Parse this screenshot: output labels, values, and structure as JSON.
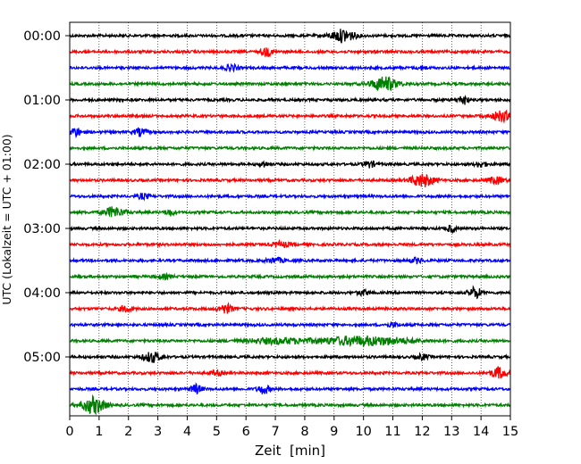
{
  "chart_data": {
    "type": "line",
    "title": "",
    "xlabel": "Zeit  [min]",
    "ylabel": "UTC (Lokalzeit = UTC + 01:00)",
    "xlim": [
      0,
      15
    ],
    "x_ticks": [
      "0",
      "1",
      "2",
      "3",
      "4",
      "5",
      "6",
      "7",
      "8",
      "9",
      "10",
      "11",
      "12",
      "13",
      "14",
      "15"
    ],
    "y_tick_labels": [
      "00:00",
      "01:00",
      "02:00",
      "03:00",
      "04:00",
      "05:00"
    ],
    "grid": "vertical dotted lines at each minute",
    "trace_interval_min": 15,
    "trace_count": 24,
    "trace_colors": [
      "#000000",
      "#ff0000",
      "#0000ff",
      "#008000"
    ],
    "series": [
      {
        "start": "00:00",
        "color": "#000000",
        "events": [
          [
            9.3,
            1.0,
            0.4
          ]
        ]
      },
      {
        "start": "00:15",
        "color": "#ff0000",
        "events": [
          [
            6.7,
            0.6,
            0.2
          ]
        ]
      },
      {
        "start": "00:30",
        "color": "#0000ff",
        "events": [
          [
            5.5,
            0.5,
            0.2
          ],
          [
            12.0,
            0.3,
            0.15
          ]
        ]
      },
      {
        "start": "00:45",
        "color": "#008000",
        "events": [
          [
            10.7,
            1.1,
            0.45
          ]
        ]
      },
      {
        "start": "01:00",
        "color": "#000000",
        "events": [
          [
            13.4,
            0.8,
            0.15
          ]
        ]
      },
      {
        "start": "01:15",
        "color": "#ff0000",
        "events": [
          [
            14.7,
            0.8,
            0.35
          ]
        ]
      },
      {
        "start": "01:30",
        "color": "#0000ff",
        "events": [
          [
            0.2,
            0.7,
            0.2
          ],
          [
            2.4,
            0.6,
            0.2
          ]
        ]
      },
      {
        "start": "01:45",
        "color": "#008000",
        "events": []
      },
      {
        "start": "02:00",
        "color": "#000000",
        "events": [
          [
            6.6,
            0.5,
            0.12
          ],
          [
            10.2,
            0.5,
            0.2
          ],
          [
            14.0,
            0.4,
            0.2
          ]
        ]
      },
      {
        "start": "02:15",
        "color": "#ff0000",
        "events": [
          [
            12.0,
            1.0,
            0.4
          ],
          [
            14.5,
            0.5,
            0.3
          ]
        ]
      },
      {
        "start": "02:30",
        "color": "#0000ff",
        "events": [
          [
            2.5,
            0.4,
            0.2
          ]
        ]
      },
      {
        "start": "02:45",
        "color": "#008000",
        "events": [
          [
            1.5,
            0.8,
            0.35
          ],
          [
            3.4,
            0.5,
            0.15
          ]
        ]
      },
      {
        "start": "03:00",
        "color": "#000000",
        "events": [
          [
            13.0,
            0.6,
            0.15
          ]
        ]
      },
      {
        "start": "03:15",
        "color": "#ff0000",
        "events": [
          [
            7.2,
            0.4,
            0.3
          ]
        ]
      },
      {
        "start": "03:30",
        "color": "#0000ff",
        "events": [
          [
            7.0,
            0.4,
            0.3
          ],
          [
            11.8,
            0.4,
            0.2
          ]
        ]
      },
      {
        "start": "03:45",
        "color": "#008000",
        "events": [
          [
            3.2,
            0.3,
            0.3
          ]
        ]
      },
      {
        "start": "04:00",
        "color": "#000000",
        "events": [
          [
            10.0,
            0.4,
            0.2
          ],
          [
            13.8,
            0.9,
            0.2
          ]
        ]
      },
      {
        "start": "04:15",
        "color": "#ff0000",
        "events": [
          [
            1.9,
            0.5,
            0.2
          ],
          [
            5.3,
            0.7,
            0.25
          ]
        ]
      },
      {
        "start": "04:30",
        "color": "#0000ff",
        "events": [
          [
            11.0,
            0.3,
            0.2
          ]
        ]
      },
      {
        "start": "04:45",
        "color": "#008000",
        "events": [
          [
            10.0,
            0.7,
            1.6
          ],
          [
            7.0,
            0.4,
            1.0
          ]
        ]
      },
      {
        "start": "05:00",
        "color": "#000000",
        "events": [
          [
            2.8,
            0.8,
            0.3
          ],
          [
            12.0,
            0.4,
            0.2
          ]
        ]
      },
      {
        "start": "05:15",
        "color": "#ff0000",
        "events": [
          [
            14.6,
            0.9,
            0.25
          ],
          [
            5.0,
            0.4,
            0.2
          ]
        ]
      },
      {
        "start": "05:30",
        "color": "#0000ff",
        "events": [
          [
            4.3,
            0.7,
            0.2
          ],
          [
            6.6,
            0.7,
            0.2
          ]
        ]
      },
      {
        "start": "05:45",
        "color": "#008000",
        "events": [
          [
            0.8,
            1.3,
            0.4
          ]
        ]
      }
    ]
  }
}
